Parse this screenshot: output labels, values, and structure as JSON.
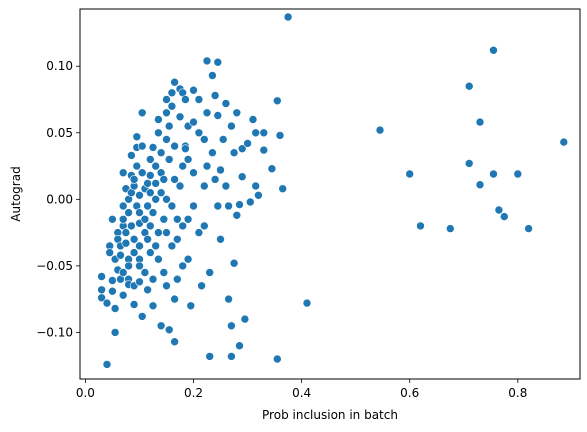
{
  "chart_data": {
    "type": "scatter",
    "title": "",
    "xlabel": "Prob inclusion in batch",
    "ylabel": "Autograd",
    "xlim": [
      -0.01,
      0.915
    ],
    "ylim": [
      -0.135,
      0.143
    ],
    "xticks": [
      0.0,
      0.2,
      0.4,
      0.6,
      0.8
    ],
    "xtick_labels": [
      "0.0",
      "0.2",
      "0.4",
      "0.6",
      "0.8"
    ],
    "yticks": [
      -0.1,
      -0.05,
      0.0,
      0.05,
      0.1
    ],
    "ytick_labels": [
      "−0.10",
      "−0.05",
      "0.00",
      "0.05",
      "0.10"
    ],
    "grid": false,
    "marker_color": "#1f77b4",
    "points": [
      [
        0.04,
        -0.124
      ],
      [
        0.03,
        -0.074
      ],
      [
        0.03,
        -0.068
      ],
      [
        0.03,
        -0.058
      ],
      [
        0.04,
        -0.078
      ],
      [
        0.045,
        -0.035
      ],
      [
        0.045,
        -0.04
      ],
      [
        0.05,
        -0.061
      ],
      [
        0.05,
        -0.069
      ],
      [
        0.055,
        -0.082
      ],
      [
        0.055,
        -0.1
      ],
      [
        0.05,
        -0.015
      ],
      [
        0.055,
        -0.045
      ],
      [
        0.06,
        -0.053
      ],
      [
        0.06,
        -0.025
      ],
      [
        0.06,
        -0.03
      ],
      [
        0.065,
        -0.035
      ],
      [
        0.065,
        -0.042
      ],
      [
        0.065,
        -0.06
      ],
      [
        0.07,
        -0.072
      ],
      [
        0.07,
        -0.055
      ],
      [
        0.07,
        -0.02
      ],
      [
        0.07,
        -0.015
      ],
      [
        0.07,
        -0.005
      ],
      [
        0.07,
        0.02
      ],
      [
        0.075,
        0.008
      ],
      [
        0.075,
        -0.025
      ],
      [
        0.075,
        -0.033
      ],
      [
        0.08,
        -0.045
      ],
      [
        0.08,
        -0.05
      ],
      [
        0.08,
        -0.06
      ],
      [
        0.08,
        -0.064
      ],
      [
        0.08,
        -0.01
      ],
      [
        0.08,
        0.0
      ],
      [
        0.085,
        0.005
      ],
      [
        0.085,
        0.018
      ],
      [
        0.085,
        0.033
      ],
      [
        0.085,
        -0.02
      ],
      [
        0.09,
        -0.03
      ],
      [
        0.09,
        -0.04
      ],
      [
        0.09,
        -0.065
      ],
      [
        0.09,
        -0.079
      ],
      [
        0.09,
        0.01
      ],
      [
        0.09,
        0.015
      ],
      [
        0.095,
        0.039
      ],
      [
        0.095,
        0.047
      ],
      [
        0.095,
        0.025
      ],
      [
        0.095,
        -0.005
      ],
      [
        0.1,
        -0.01
      ],
      [
        0.1,
        -0.018
      ],
      [
        0.1,
        -0.035
      ],
      [
        0.1,
        -0.045
      ],
      [
        0.1,
        -0.05
      ],
      [
        0.1,
        -0.062
      ],
      [
        0.1,
        0.003
      ],
      [
        0.105,
        0.065
      ],
      [
        0.105,
        0.04
      ],
      [
        0.105,
        0.02
      ],
      [
        0.105,
        -0.088
      ],
      [
        0.11,
        -0.055
      ],
      [
        0.11,
        -0.025
      ],
      [
        0.11,
        -0.015
      ],
      [
        0.11,
        0.008
      ],
      [
        0.115,
        0.012
      ],
      [
        0.115,
        -0.005
      ],
      [
        0.115,
        -0.03
      ],
      [
        0.115,
        -0.068
      ],
      [
        0.12,
        -0.04
      ],
      [
        0.12,
        -0.02
      ],
      [
        0.12,
        0.005
      ],
      [
        0.12,
        0.018
      ],
      [
        0.12,
        0.03
      ],
      [
        0.125,
        0.039
      ],
      [
        0.125,
        -0.01
      ],
      [
        0.125,
        -0.06
      ],
      [
        0.125,
        -0.08
      ],
      [
        0.13,
        -0.035
      ],
      [
        0.13,
        0.0
      ],
      [
        0.13,
        0.012
      ],
      [
        0.13,
        0.025
      ],
      [
        0.135,
        -0.025
      ],
      [
        0.135,
        -0.045
      ],
      [
        0.135,
        0.06
      ],
      [
        0.135,
        0.05
      ],
      [
        0.14,
        -0.095
      ],
      [
        0.14,
        0.005
      ],
      [
        0.14,
        0.02
      ],
      [
        0.14,
        0.035
      ],
      [
        0.145,
        -0.015
      ],
      [
        0.145,
        -0.055
      ],
      [
        0.145,
        0.015
      ],
      [
        0.15,
        0.045
      ],
      [
        0.15,
        0.065
      ],
      [
        0.15,
        0.075
      ],
      [
        0.15,
        0.0
      ],
      [
        0.15,
        -0.025
      ],
      [
        0.15,
        -0.065
      ],
      [
        0.155,
        -0.098
      ],
      [
        0.155,
        0.03
      ],
      [
        0.155,
        0.055
      ],
      [
        0.16,
        0.08
      ],
      [
        0.16,
        0.07
      ],
      [
        0.16,
        -0.005
      ],
      [
        0.16,
        -0.035
      ],
      [
        0.165,
        0.088
      ],
      [
        0.165,
        0.04
      ],
      [
        0.165,
        0.015
      ],
      [
        0.165,
        -0.075
      ],
      [
        0.165,
        -0.107
      ],
      [
        0.17,
        -0.015
      ],
      [
        0.17,
        -0.03
      ],
      [
        0.17,
        -0.06
      ],
      [
        0.175,
        0.083
      ],
      [
        0.175,
        0.062
      ],
      [
        0.175,
        0.01
      ],
      [
        0.18,
        0.08
      ],
      [
        0.18,
        0.025
      ],
      [
        0.18,
        -0.02
      ],
      [
        0.18,
        -0.05
      ],
      [
        0.185,
        0.075
      ],
      [
        0.185,
        0.04
      ],
      [
        0.185,
        0.038
      ],
      [
        0.19,
        0.055
      ],
      [
        0.19,
        0.03
      ],
      [
        0.19,
        -0.015
      ],
      [
        0.19,
        -0.045
      ],
      [
        0.195,
        -0.08
      ],
      [
        0.2,
        0.082
      ],
      [
        0.2,
        0.058
      ],
      [
        0.2,
        0.02
      ],
      [
        0.2,
        -0.005
      ],
      [
        0.21,
        0.075
      ],
      [
        0.21,
        0.05
      ],
      [
        0.21,
        -0.025
      ],
      [
        0.215,
        -0.065
      ],
      [
        0.22,
        0.045
      ],
      [
        0.22,
        0.01
      ],
      [
        0.22,
        -0.02
      ],
      [
        0.225,
        0.104
      ],
      [
        0.225,
        0.065
      ],
      [
        0.225,
        0.025
      ],
      [
        0.23,
        -0.055
      ],
      [
        0.23,
        -0.118
      ],
      [
        0.235,
        0.093
      ],
      [
        0.235,
        0.035
      ],
      [
        0.24,
        0.078
      ],
      [
        0.24,
        0.015
      ],
      [
        0.245,
        0.103
      ],
      [
        0.245,
        0.063
      ],
      [
        0.245,
        -0.005
      ],
      [
        0.25,
        0.022
      ],
      [
        0.25,
        -0.03
      ],
      [
        0.255,
        0.045
      ],
      [
        0.26,
        0.072
      ],
      [
        0.26,
        0.01
      ],
      [
        0.265,
        -0.005
      ],
      [
        0.265,
        -0.075
      ],
      [
        0.27,
        -0.095
      ],
      [
        0.27,
        -0.118
      ],
      [
        0.27,
        0.055
      ],
      [
        0.275,
        -0.048
      ],
      [
        0.275,
        0.035
      ],
      [
        0.28,
        0.065
      ],
      [
        0.28,
        -0.012
      ],
      [
        0.285,
        -0.004
      ],
      [
        0.285,
        -0.11
      ],
      [
        0.29,
        0.038
      ],
      [
        0.29,
        0.017
      ],
      [
        0.295,
        -0.09
      ],
      [
        0.3,
        0.042
      ],
      [
        0.305,
        -0.002
      ],
      [
        0.31,
        0.06
      ],
      [
        0.315,
        0.05
      ],
      [
        0.315,
        0.01
      ],
      [
        0.32,
        0.003
      ],
      [
        0.33,
        0.05
      ],
      [
        0.33,
        0.037
      ],
      [
        0.345,
        0.023
      ],
      [
        0.355,
        0.074
      ],
      [
        0.355,
        -0.12
      ],
      [
        0.36,
        0.048
      ],
      [
        0.365,
        0.008
      ],
      [
        0.375,
        0.137
      ],
      [
        0.41,
        -0.078
      ],
      [
        0.545,
        0.052
      ],
      [
        0.6,
        0.019
      ],
      [
        0.62,
        -0.02
      ],
      [
        0.675,
        -0.022
      ],
      [
        0.71,
        0.085
      ],
      [
        0.71,
        0.027
      ],
      [
        0.73,
        0.058
      ],
      [
        0.73,
        0.011
      ],
      [
        0.755,
        0.112
      ],
      [
        0.755,
        0.019
      ],
      [
        0.765,
        -0.008
      ],
      [
        0.775,
        -0.013
      ],
      [
        0.8,
        0.019
      ],
      [
        0.82,
        -0.022
      ],
      [
        0.885,
        0.043
      ]
    ]
  }
}
